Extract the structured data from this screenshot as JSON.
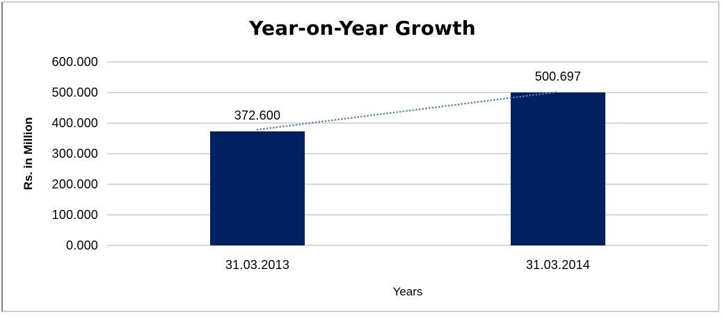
{
  "chart_data": {
    "type": "bar",
    "title": "Year-on-Year Growth",
    "xlabel": "Years",
    "ylabel": "Rs. in Million",
    "categories": [
      "31.03.2013",
      "31.03.2014"
    ],
    "values": [
      372.6,
      500.697
    ],
    "data_labels": [
      "372.600",
      "500.697"
    ],
    "y_ticks": [
      "0.000",
      "100.000",
      "200.000",
      "300.000",
      "400.000",
      "500.000",
      "600.000"
    ],
    "ylim": [
      0,
      600
    ],
    "grid": true,
    "legend_position": "none",
    "trendline": {
      "type": "linear",
      "style": "dotted",
      "color": "#4F81BD"
    },
    "colors": {
      "bar": "#002060",
      "gridline": "#d8d8d8",
      "trendline": "#4F81BD",
      "title_text": "#000000",
      "frame_border": "#cdcdcd"
    }
  }
}
